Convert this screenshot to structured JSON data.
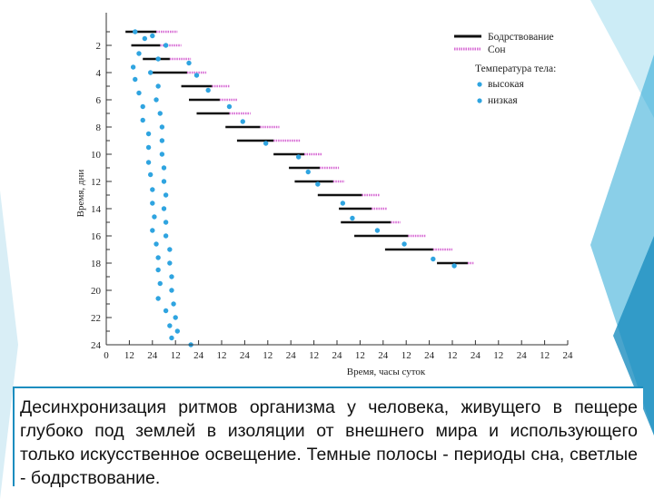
{
  "caption": "Десинхронизация ритмов организма у человека, живущего в пещере глубоко под землей в изоляции от внешнего мира и использующего только искусственное освещение. Темные полосы - периоды сна, светлые - бодрствование.",
  "colors": {
    "wake": "#111111",
    "sleep": "#d76bd4",
    "temp": "#2fa4e0",
    "accent": "#1b8dbf"
  },
  "chart_data": {
    "type": "scatter",
    "title": "",
    "xlabel": "Время, часы суток",
    "ylabel": "Время, дни",
    "x_ticks": [
      "0",
      "12",
      "24",
      "12",
      "24",
      "12",
      "24",
      "12",
      "24",
      "12",
      "24",
      "12",
      "24",
      "12",
      "24",
      "12",
      "24",
      "12",
      "24",
      "12",
      "24"
    ],
    "y_ticks": [
      "2",
      "4",
      "6",
      "8",
      "10",
      "12",
      "14",
      "16",
      "18",
      "20",
      "22",
      "24"
    ],
    "xlim": [
      0,
      240
    ],
    "ylim": [
      25,
      0
    ],
    "legend": {
      "position": "top-right",
      "wake": "Бодрствование",
      "sleep": "Сон",
      "temp_title": "Температура тела:",
      "temp_high": "высокая",
      "temp_low": "низкая"
    },
    "wake": [
      {
        "day": 1,
        "start": 10,
        "end": 26
      },
      {
        "day": 2,
        "start": 13,
        "end": 28
      },
      {
        "day": 3,
        "start": 19,
        "end": 33
      },
      {
        "day": 4,
        "start": 24,
        "end": 42
      },
      {
        "day": 5,
        "start": 39,
        "end": 55
      },
      {
        "day": 6,
        "start": 43,
        "end": 59
      },
      {
        "day": 7,
        "start": 47,
        "end": 64
      },
      {
        "day": 8,
        "start": 62,
        "end": 80
      },
      {
        "day": 9,
        "start": 68,
        "end": 87
      },
      {
        "day": 10,
        "start": 87,
        "end": 103
      },
      {
        "day": 11,
        "start": 95,
        "end": 111
      },
      {
        "day": 12,
        "start": 98,
        "end": 118
      },
      {
        "day": 13,
        "start": 110,
        "end": 133
      },
      {
        "day": 14,
        "start": 121,
        "end": 138
      },
      {
        "day": 15,
        "start": 122,
        "end": 148
      },
      {
        "day": 16,
        "start": 129,
        "end": 157
      },
      {
        "day": 17,
        "start": 145,
        "end": 170
      },
      {
        "day": 18,
        "start": 172,
        "end": 188
      }
    ],
    "sleep": [
      {
        "day": 1,
        "start": 26,
        "end": 37
      },
      {
        "day": 2,
        "start": 28,
        "end": 39
      },
      {
        "day": 3,
        "start": 33,
        "end": 44
      },
      {
        "day": 4,
        "start": 42,
        "end": 52
      },
      {
        "day": 5,
        "start": 55,
        "end": 64
      },
      {
        "day": 6,
        "start": 59,
        "end": 68
      },
      {
        "day": 7,
        "start": 64,
        "end": 75
      },
      {
        "day": 8,
        "start": 80,
        "end": 90
      },
      {
        "day": 9,
        "start": 87,
        "end": 101
      },
      {
        "day": 10,
        "start": 103,
        "end": 112
      },
      {
        "day": 11,
        "start": 111,
        "end": 121
      },
      {
        "day": 12,
        "start": 118,
        "end": 124
      },
      {
        "day": 13,
        "start": 133,
        "end": 142
      },
      {
        "day": 14,
        "start": 138,
        "end": 146
      },
      {
        "day": 15,
        "start": 148,
        "end": 153
      },
      {
        "day": 16,
        "start": 157,
        "end": 166
      },
      {
        "day": 17,
        "start": 170,
        "end": 180
      },
      {
        "day": 18,
        "start": 188,
        "end": 191
      }
    ],
    "temp_low": [
      {
        "day": 1,
        "x": 15
      },
      {
        "day": 1.5,
        "x": 20
      },
      {
        "day": 2,
        "x": 31
      },
      {
        "day": 2.6,
        "x": 17
      },
      {
        "day": 3,
        "x": 27
      },
      {
        "day": 3.6,
        "x": 14
      },
      {
        "day": 4,
        "x": 23
      },
      {
        "day": 4.5,
        "x": 15
      },
      {
        "day": 5,
        "x": 27
      },
      {
        "day": 5.5,
        "x": 17
      },
      {
        "day": 6,
        "x": 26
      },
      {
        "day": 6.5,
        "x": 19
      },
      {
        "day": 7,
        "x": 28
      },
      {
        "day": 7.5,
        "x": 19
      },
      {
        "day": 8,
        "x": 29
      },
      {
        "day": 8.5,
        "x": 22
      },
      {
        "day": 9,
        "x": 29
      },
      {
        "day": 9.5,
        "x": 22
      },
      {
        "day": 10,
        "x": 29
      },
      {
        "day": 10.6,
        "x": 22
      },
      {
        "day": 11,
        "x": 30
      },
      {
        "day": 11.5,
        "x": 23
      },
      {
        "day": 12,
        "x": 30
      },
      {
        "day": 12.6,
        "x": 24
      },
      {
        "day": 13,
        "x": 31
      },
      {
        "day": 13.6,
        "x": 24
      },
      {
        "day": 14,
        "x": 30
      },
      {
        "day": 14.6,
        "x": 25
      },
      {
        "day": 15,
        "x": 31
      },
      {
        "day": 15.6,
        "x": 24
      },
      {
        "day": 16,
        "x": 31
      },
      {
        "day": 16.6,
        "x": 26
      },
      {
        "day": 17,
        "x": 33
      },
      {
        "day": 17.6,
        "x": 27
      },
      {
        "day": 18,
        "x": 33
      },
      {
        "day": 18.5,
        "x": 27
      },
      {
        "day": 19,
        "x": 34
      },
      {
        "day": 19.5,
        "x": 28
      },
      {
        "day": 20,
        "x": 34
      },
      {
        "day": 20.6,
        "x": 27
      },
      {
        "day": 21,
        "x": 35
      },
      {
        "day": 21.5,
        "x": 31
      },
      {
        "day": 22,
        "x": 36
      },
      {
        "day": 22.6,
        "x": 33
      },
      {
        "day": 23,
        "x": 37
      },
      {
        "day": 23.5,
        "x": 34
      },
      {
        "day": 24,
        "x": 44
      }
    ],
    "temp_high": [
      {
        "day": 1.3,
        "x": 24
      },
      {
        "day": 3.3,
        "x": 43
      },
      {
        "day": 4.2,
        "x": 47
      },
      {
        "day": 5.3,
        "x": 53
      },
      {
        "day": 6.5,
        "x": 64
      },
      {
        "day": 7.6,
        "x": 71
      },
      {
        "day": 9.2,
        "x": 83
      },
      {
        "day": 10.2,
        "x": 100
      },
      {
        "day": 11.3,
        "x": 105
      },
      {
        "day": 12.2,
        "x": 110
      },
      {
        "day": 13.6,
        "x": 123
      },
      {
        "day": 14.7,
        "x": 128
      },
      {
        "day": 15.6,
        "x": 141
      },
      {
        "day": 16.6,
        "x": 155
      },
      {
        "day": 17.7,
        "x": 170
      },
      {
        "day": 18.2,
        "x": 181
      }
    ]
  }
}
